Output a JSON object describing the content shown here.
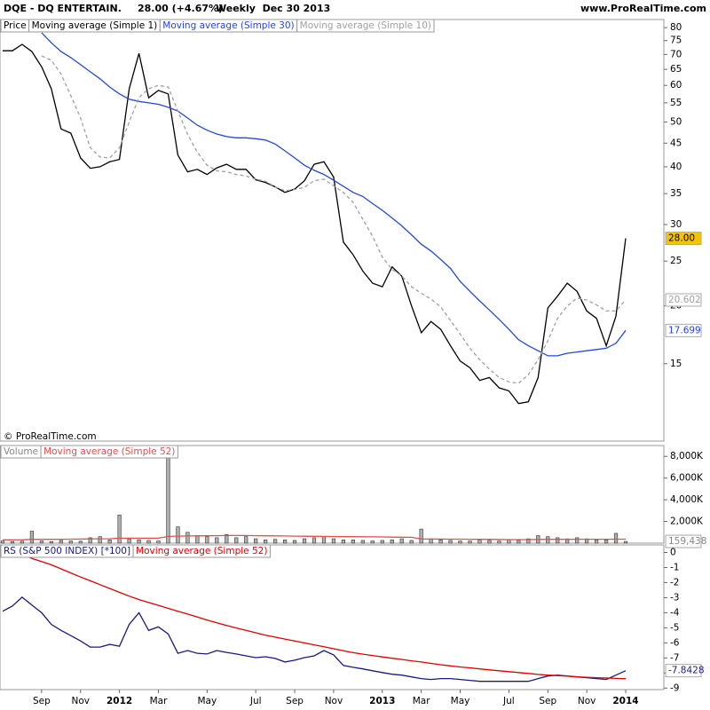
{
  "header": {
    "symbol": "DQE - DQ ENTERTAIN.",
    "quote": "28.00 (+4.67%)",
    "period": "Weekly  Dec 30 2013",
    "site": "www.ProRealTime.com",
    "copyright": "© ProRealTime.com"
  },
  "chart_data": [
    {
      "type": "line",
      "label": "Price",
      "log": true,
      "ylim": [
        10.2,
        83.3
      ],
      "yticks": [
        15,
        20,
        25,
        30,
        35,
        40,
        45,
        50,
        55,
        60,
        65,
        70,
        75,
        80
      ],
      "series": [
        {
          "name": "Moving average (Simple 1)",
          "color": "#000000",
          "last_label": "28.00",
          "values": [
            71.3,
            71.3,
            73.6,
            71.0,
            65.8,
            59.0,
            48.3,
            47.3,
            41.8,
            39.7,
            40.0,
            41.0,
            41.5,
            59.0,
            70.4,
            56.4,
            58.5,
            57.5,
            42.4,
            39.0,
            39.5,
            38.5,
            39.8,
            40.5,
            39.5,
            39.5,
            37.5,
            37.0,
            36.2,
            35.2,
            35.8,
            37.3,
            40.5,
            41.0,
            38.0,
            27.5,
            25.8,
            23.8,
            22.4,
            22.0,
            24.3,
            23.2,
            20.0,
            17.5,
            18.5,
            17.8,
            16.4,
            15.2,
            14.7,
            13.8,
            14.0,
            13.3,
            13.1,
            12.3,
            12.4,
            14.0,
            19.8,
            21.0,
            22.4,
            21.5,
            19.5,
            18.8,
            16.4,
            19.0,
            28.0
          ]
        },
        {
          "name": "Moving average (Simple 30)",
          "color": "#2448d8",
          "last_label": "17.699",
          "values": [
            null,
            null,
            null,
            null,
            78,
            74.2,
            71,
            68.9,
            66.5,
            64.2,
            62,
            59.5,
            57.5,
            56,
            55.4,
            55,
            54.6,
            53.8,
            52.8,
            51,
            49.2,
            48,
            47.1,
            46.5,
            46.2,
            46.2,
            46,
            45.7,
            44.8,
            43.3,
            41.8,
            40.3,
            39.3,
            38.5,
            37.4,
            36.3,
            35.2,
            34.5,
            33.3,
            32.2,
            31,
            29.8,
            28.5,
            27.2,
            26.3,
            25.2,
            24.1,
            22.6,
            21.5,
            20.5,
            19.6,
            18.7,
            17.8,
            16.9,
            16.4,
            16.0,
            15.6,
            15.6,
            15.8,
            15.9,
            16.0,
            16.1,
            16.2,
            16.6,
            17.699
          ]
        },
        {
          "name": "Moving average (Simple 10)",
          "color": "#a0a0a0",
          "dash": true,
          "last_label": "20.602",
          "values": [
            null,
            null,
            null,
            null,
            69.5,
            68,
            63.5,
            57,
            51,
            44,
            42,
            41.8,
            44,
            50,
            56.5,
            59,
            60,
            59.5,
            52.8,
            47,
            43,
            40.3,
            39.2,
            39,
            38.5,
            38.2,
            37.6,
            37.2,
            36.2,
            35.5,
            35.7,
            36.1,
            37.3,
            37.6,
            36.4,
            35.2,
            33.5,
            30.8,
            28.3,
            25.5,
            24,
            23.2,
            22.0,
            21.3,
            20.7,
            19.9,
            18.6,
            17.4,
            16.2,
            15.3,
            14.6,
            14.0,
            13.7,
            13.6,
            14.2,
            15.3,
            16.8,
            18.8,
            20.0,
            20.8,
            20.6,
            20.1,
            19.5,
            19.5,
            20.602
          ]
        }
      ]
    },
    {
      "type": "bar",
      "label": "Volume",
      "ylim": [
        0,
        9000
      ],
      "color": "#b0b0b0",
      "last_label": "159,438",
      "yticks": [
        {
          "value": 2000,
          "label": "2,000K"
        },
        {
          "value": 4000,
          "label": "4,000K"
        },
        {
          "value": 6000,
          "label": "6,000K"
        },
        {
          "value": 8000,
          "label": "8,000K"
        }
      ],
      "values": [
        200,
        150,
        180,
        1100,
        200,
        150,
        250,
        200,
        180,
        500,
        600,
        300,
        2600,
        400,
        300,
        250,
        200,
        8600,
        1500,
        1000,
        700,
        600,
        500,
        800,
        500,
        600,
        400,
        300,
        350,
        300,
        250,
        400,
        500,
        600,
        400,
        300,
        300,
        250,
        200,
        250,
        300,
        400,
        250,
        1300,
        400,
        300,
        250,
        200,
        200,
        300,
        250,
        200,
        300,
        250,
        400,
        700,
        600,
        500,
        400,
        500,
        400,
        300,
        300,
        900,
        159.438
      ],
      "series": [
        {
          "name": "Moving average (Simple 52)",
          "color": "#e05050",
          "values": [
            300,
            300,
            310,
            350,
            350,
            350,
            360,
            370,
            380,
            390,
            400,
            410,
            460,
            460,
            460,
            460,
            460,
            620,
            650,
            660,
            670,
            680,
            690,
            700,
            700,
            700,
            690,
            680,
            670,
            660,
            650,
            640,
            630,
            620,
            610,
            600,
            600,
            590,
            580,
            570,
            560,
            550,
            540,
            380,
            380,
            380,
            370,
            370,
            360,
            350,
            350,
            340,
            330,
            330,
            330,
            340,
            350,
            350,
            350,
            360,
            360,
            360,
            360,
            370,
            370
          ]
        }
      ]
    },
    {
      "type": "line",
      "ylim": [
        -9.1,
        0.5
      ],
      "yticks": [
        0,
        -1,
        -2,
        -3,
        -4,
        -5,
        -6,
        -7,
        -8,
        -9
      ],
      "categories": [
        null,
        null,
        null,
        null,
        "Sep",
        null,
        null,
        null,
        "Nov",
        null,
        null,
        null,
        "2012",
        null,
        null,
        null,
        "Mar",
        null,
        null,
        null,
        null,
        "May",
        null,
        null,
        null,
        null,
        "Jul",
        null,
        null,
        null,
        "Sep",
        null,
        null,
        null,
        "Nov",
        null,
        null,
        null,
        null,
        "2013",
        null,
        null,
        null,
        "Mar",
        null,
        null,
        null,
        "May",
        null,
        null,
        null,
        null,
        "Jul",
        null,
        null,
        null,
        "Sep",
        null,
        null,
        null,
        "Nov",
        null,
        null,
        null,
        "2014"
      ],
      "series": [
        {
          "name": "RS (S&P 500 INDEX) [*100]",
          "color": "#1a1a80",
          "last_label": "-7.8428",
          "values": [
            -3.9,
            -3.55,
            -2.97,
            -3.49,
            -4.0,
            -4.77,
            -5.17,
            -5.52,
            -5.87,
            -6.28,
            -6.28,
            -6.1,
            -6.22,
            -4.77,
            -4.0,
            -5.17,
            -4.94,
            -5.41,
            -6.69,
            -6.51,
            -6.69,
            -6.74,
            -6.51,
            -6.63,
            -6.74,
            -6.86,
            -6.98,
            -6.92,
            -7.03,
            -7.27,
            -7.15,
            -6.98,
            -6.86,
            -6.51,
            -6.8,
            -7.5,
            -7.62,
            -7.73,
            -7.85,
            -7.97,
            -8.08,
            -8.14,
            -8.26,
            -8.37,
            -8.43,
            -8.37,
            -8.37,
            -8.43,
            -8.49,
            -8.55,
            -8.55,
            -8.55,
            -8.55,
            -8.55,
            -8.55,
            -8.37,
            -8.2,
            -8.14,
            -8.2,
            -8.26,
            -8.31,
            -8.37,
            -8.43,
            -8.14,
            -7.8428
          ]
        },
        {
          "name": "Moving average (Simple 52)",
          "color": "#e00000",
          "values": [
            null,
            0.2,
            -0.1,
            -0.4,
            -0.6,
            -0.82,
            -1.09,
            -1.36,
            -1.63,
            -1.88,
            -2.14,
            -2.39,
            -2.65,
            -2.9,
            -3.13,
            -3.32,
            -3.51,
            -3.71,
            -3.9,
            -4.09,
            -4.28,
            -4.48,
            -4.67,
            -4.85,
            -5.01,
            -5.17,
            -5.33,
            -5.49,
            -5.62,
            -5.75,
            -5.88,
            -6.0,
            -6.13,
            -6.26,
            -6.39,
            -6.52,
            -6.65,
            -6.75,
            -6.84,
            -6.93,
            -7.02,
            -7.1,
            -7.19,
            -7.27,
            -7.36,
            -7.45,
            -7.53,
            -7.6,
            -7.66,
            -7.73,
            -7.79,
            -7.85,
            -7.91,
            -7.97,
            -8.03,
            -8.09,
            -8.14,
            -8.17,
            -8.21,
            -8.25,
            -8.28,
            -8.31,
            -8.33,
            -8.36,
            -8.38
          ]
        }
      ]
    }
  ]
}
